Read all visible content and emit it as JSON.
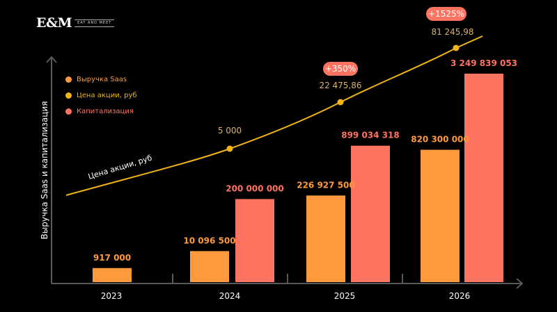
{
  "logo": {
    "main": "E&M",
    "sub": "EAT AND MEET"
  },
  "colors": {
    "background": "#000000",
    "saas": "#ff9a3c",
    "price": "#f2b518",
    "cap": "#ff7361",
    "axis": "#5a5a5a",
    "priceLabel": "#d9b26a",
    "badgeText": "#ffffff"
  },
  "chart_data": {
    "type": "bar",
    "title": "",
    "xlabel": "",
    "ylabel": "Выручка Saas и капитализация",
    "categories": [
      "2023",
      "2024",
      "2025",
      "2026"
    ],
    "series": [
      {
        "name": "Выручка Saas",
        "values": [
          917000,
          10096500,
          226927500,
          820300000
        ],
        "labels": [
          "917 000",
          "10 096 500",
          "226 927 500",
          "820 300 000"
        ]
      },
      {
        "name": "Капитализация",
        "values": [
          null,
          200000000,
          899034318,
          3249839053
        ],
        "labels": [
          "",
          "200 000 000",
          "899 034 318",
          "3 249 839 053"
        ]
      }
    ],
    "line": {
      "name": "Цена акции, руб",
      "inline_label": "Цена акции, руб",
      "points": [
        {
          "category": "2024",
          "value": 5000,
          "label": "5 000"
        },
        {
          "category": "2025",
          "value": 22475.86,
          "label": "22 475,86",
          "badge": "+350%"
        },
        {
          "category": "2026",
          "value": 81245.98,
          "label": "81 245,98",
          "badge": "+1525%"
        }
      ]
    },
    "legend": {
      "placement": "top-left",
      "items": [
        {
          "label": "Выручка Saas",
          "color": "#ff9a3c"
        },
        {
          "label": "Цена акции, руб",
          "color": "#f2b518"
        },
        {
          "label": "Капитализация",
          "color": "#ff7361"
        }
      ]
    },
    "grid": false,
    "scale": "non-linear (illustrative)"
  }
}
